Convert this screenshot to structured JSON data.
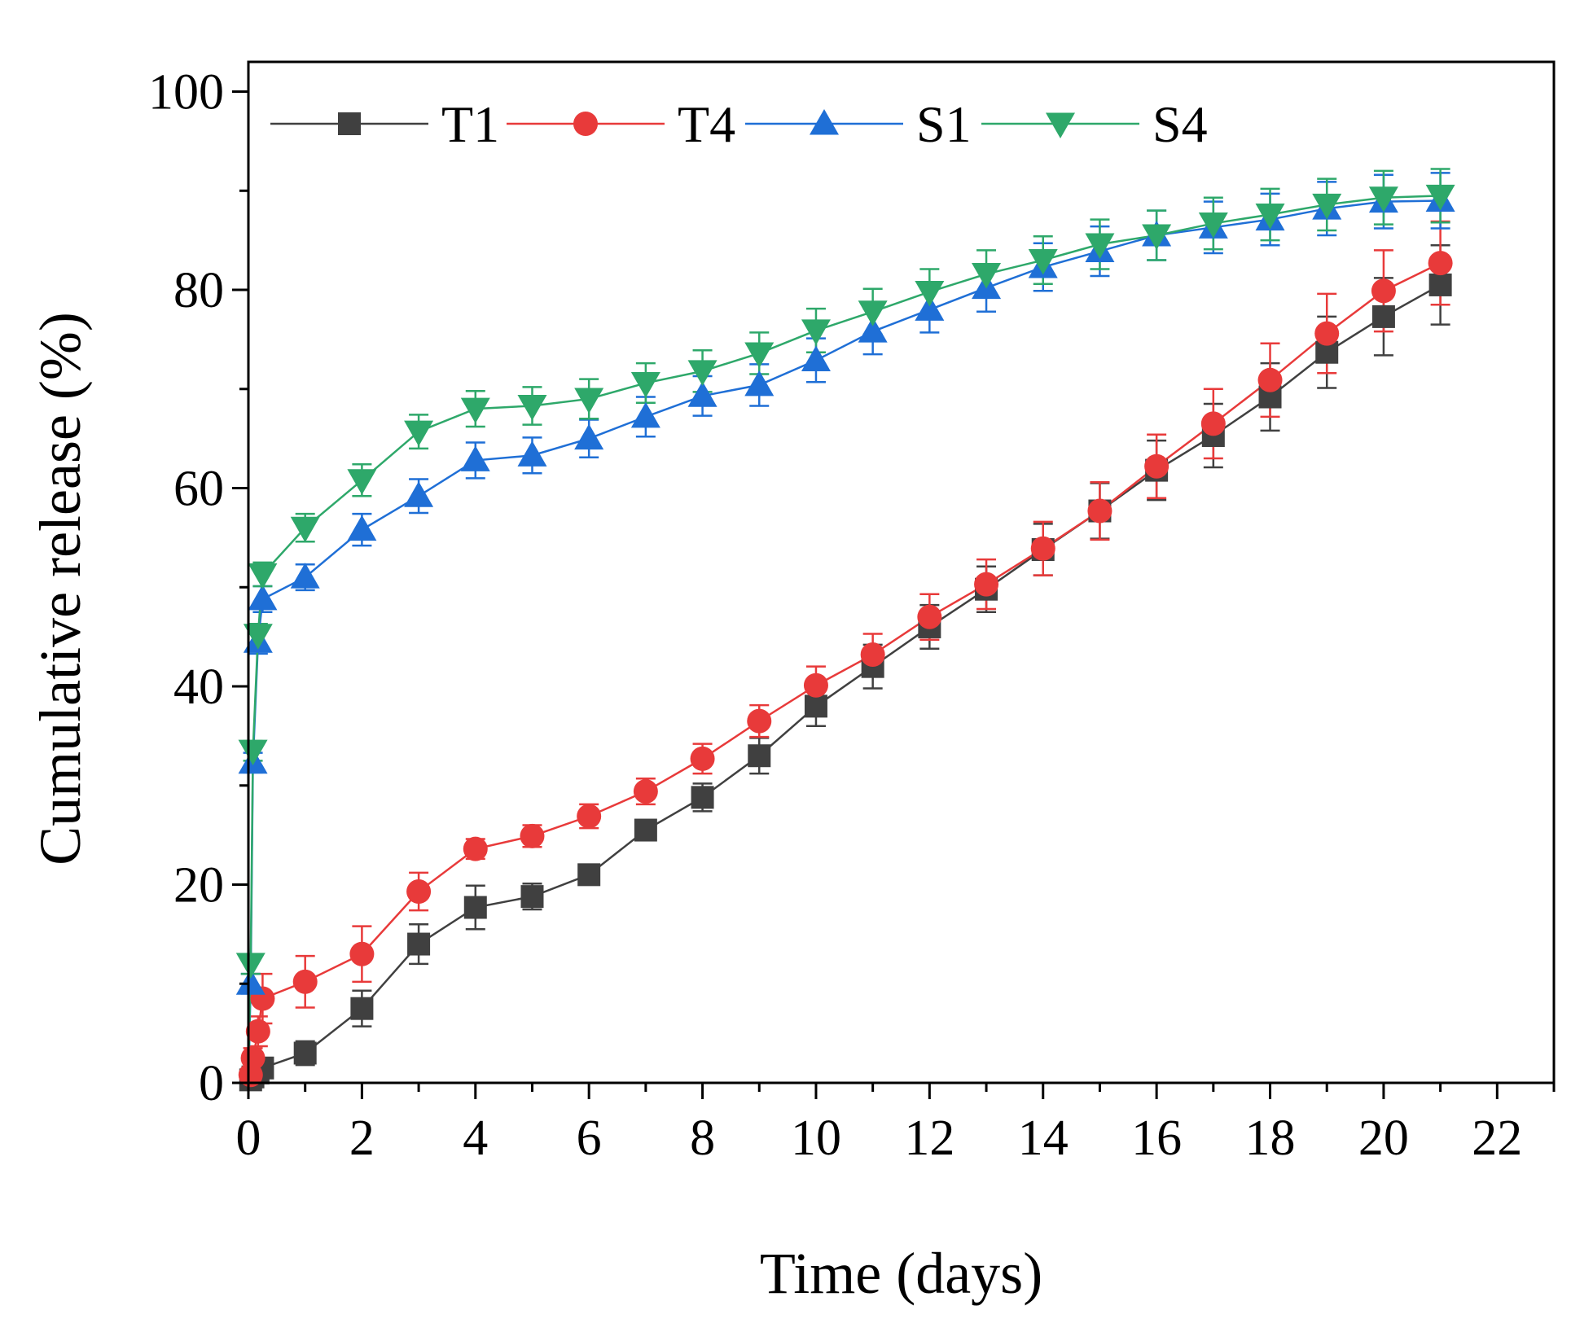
{
  "chart_data": {
    "type": "line",
    "title": "",
    "xlabel": "Time (days)",
    "ylabel": "Cumulative release (%)",
    "xlim": [
      0,
      23
    ],
    "ylim": [
      0,
      103
    ],
    "x_ticks": [
      0,
      2,
      4,
      6,
      8,
      10,
      12,
      14,
      16,
      18,
      20,
      22
    ],
    "y_ticks": [
      0,
      20,
      40,
      60,
      80,
      100
    ],
    "x_tick_labels": [
      "0",
      "2",
      "4",
      "6",
      "8",
      "10",
      "12",
      "14",
      "16",
      "18",
      "20",
      "22"
    ],
    "y_tick_labels": [
      "0",
      "20",
      "40",
      "60",
      "80",
      "100"
    ],
    "grid": false,
    "legend_position": "top",
    "series": [
      {
        "name": "T1",
        "color": "#404040",
        "marker": "square",
        "x": [
          0,
          0.04,
          0.08,
          0.17,
          0.25,
          1,
          2,
          3,
          4,
          5,
          6,
          7,
          8,
          9,
          10,
          11,
          12,
          13,
          14,
          15,
          16,
          17,
          18,
          19,
          20,
          21
        ],
        "y": [
          0,
          0.3,
          0.6,
          1.0,
          1.5,
          3.0,
          7.5,
          14.0,
          17.7,
          18.8,
          21.0,
          25.5,
          28.8,
          33.0,
          38.0,
          42.0,
          46.0,
          49.8,
          53.8,
          57.7,
          61.8,
          65.3,
          69.2,
          73.7,
          77.3,
          80.5
        ],
        "err": [
          0,
          0.3,
          0.4,
          0.6,
          0.8,
          1.2,
          1.8,
          2.0,
          2.2,
          1.3,
          0.9,
          1.0,
          1.4,
          1.8,
          2.0,
          2.2,
          2.2,
          2.3,
          2.6,
          2.8,
          3.0,
          3.2,
          3.4,
          3.6,
          3.9,
          4.0
        ]
      },
      {
        "name": "T4",
        "color": "#e83a3a",
        "marker": "circle",
        "x": [
          0,
          0.04,
          0.08,
          0.17,
          0.25,
          1,
          2,
          3,
          4,
          5,
          6,
          7,
          8,
          9,
          10,
          11,
          12,
          13,
          14,
          15,
          16,
          17,
          18,
          19,
          20,
          21
        ],
        "y": [
          0,
          0.8,
          2.5,
          5.2,
          8.5,
          10.2,
          13.0,
          19.3,
          23.6,
          24.9,
          26.9,
          29.4,
          32.7,
          36.5,
          40.1,
          43.2,
          47.0,
          50.3,
          53.9,
          57.7,
          62.2,
          66.5,
          70.9,
          75.6,
          79.9,
          82.7
        ],
        "err": [
          0,
          0.5,
          1.0,
          1.5,
          2.5,
          2.6,
          2.8,
          1.9,
          1.0,
          1.1,
          1.2,
          1.3,
          1.5,
          1.6,
          1.9,
          2.1,
          2.3,
          2.5,
          2.7,
          2.9,
          3.2,
          3.5,
          3.7,
          4.0,
          4.1,
          4.2
        ]
      },
      {
        "name": "S1",
        "color": "#1f6fd6",
        "marker": "triangle-up",
        "x": [
          0,
          0.04,
          0.08,
          0.17,
          0.25,
          1,
          2,
          3,
          4,
          5,
          6,
          7,
          8,
          9,
          10,
          11,
          12,
          13,
          14,
          15,
          16,
          17,
          18,
          19,
          20,
          21
        ],
        "y": [
          0,
          10.0,
          32.3,
          44.5,
          48.8,
          51.0,
          55.8,
          59.2,
          62.8,
          63.3,
          65.0,
          67.2,
          69.3,
          70.4,
          72.9,
          75.8,
          78.0,
          80.2,
          82.3,
          83.9,
          85.5,
          86.3,
          87.1,
          88.2,
          88.9,
          89.0
        ],
        "err": [
          0,
          1.0,
          1.0,
          1.2,
          1.3,
          1.3,
          1.6,
          1.7,
          1.8,
          1.8,
          1.9,
          2.0,
          2.0,
          2.1,
          2.2,
          2.3,
          2.3,
          2.4,
          2.4,
          2.5,
          2.5,
          2.6,
          2.6,
          2.7,
          2.7,
          2.8
        ]
      },
      {
        "name": "S4",
        "color": "#2ea86a",
        "marker": "triangle-down",
        "x": [
          0,
          0.04,
          0.08,
          0.17,
          0.25,
          1,
          2,
          3,
          4,
          5,
          6,
          7,
          8,
          9,
          10,
          11,
          12,
          13,
          14,
          15,
          16,
          17,
          18,
          19,
          20,
          21
        ],
        "y": [
          0,
          12.0,
          33.5,
          45.2,
          51.3,
          56.0,
          60.8,
          65.7,
          68.0,
          68.3,
          69.0,
          70.6,
          71.8,
          73.6,
          75.9,
          77.8,
          79.8,
          81.6,
          83.0,
          84.6,
          85.5,
          86.7,
          87.6,
          88.6,
          89.3,
          89.5
        ],
        "err": [
          0,
          1.0,
          1.0,
          1.1,
          1.2,
          1.4,
          1.6,
          1.7,
          1.8,
          1.9,
          2.0,
          2.0,
          2.1,
          2.1,
          2.2,
          2.3,
          2.3,
          2.4,
          2.4,
          2.5,
          2.5,
          2.6,
          2.6,
          2.6,
          2.7,
          2.7
        ]
      }
    ]
  }
}
